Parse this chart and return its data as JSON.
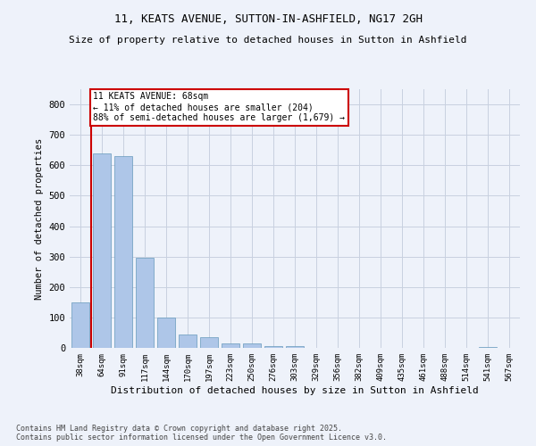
{
  "title1": "11, KEATS AVENUE, SUTTON-IN-ASHFIELD, NG17 2GH",
  "title2": "Size of property relative to detached houses in Sutton in Ashfield",
  "xlabel": "Distribution of detached houses by size in Sutton in Ashfield",
  "ylabel": "Number of detached properties",
  "categories": [
    "38sqm",
    "64sqm",
    "91sqm",
    "117sqm",
    "144sqm",
    "170sqm",
    "197sqm",
    "223sqm",
    "250sqm",
    "276sqm",
    "303sqm",
    "329sqm",
    "356sqm",
    "382sqm",
    "409sqm",
    "435sqm",
    "461sqm",
    "488sqm",
    "514sqm",
    "541sqm",
    "567sqm"
  ],
  "values": [
    150,
    640,
    630,
    295,
    100,
    45,
    35,
    15,
    15,
    5,
    5,
    0,
    0,
    0,
    0,
    0,
    0,
    0,
    0,
    2,
    0
  ],
  "bar_color": "#aec6e8",
  "bar_edge_color": "#6699bb",
  "vline_x": 0.5,
  "vline_color": "#cc0000",
  "annotation_text": "11 KEATS AVENUE: 68sqm\n← 11% of detached houses are smaller (204)\n88% of semi-detached houses are larger (1,679) →",
  "annotation_box_color": "#cc0000",
  "annotation_bg": "#ffffff",
  "ylim": [
    0,
    850
  ],
  "yticks": [
    0,
    100,
    200,
    300,
    400,
    500,
    600,
    700,
    800
  ],
  "grid_color": "#c8d0e0",
  "footer1": "Contains HM Land Registry data © Crown copyright and database right 2025.",
  "footer2": "Contains public sector information licensed under the Open Government Licence v3.0.",
  "bg_color": "#eef2fa"
}
